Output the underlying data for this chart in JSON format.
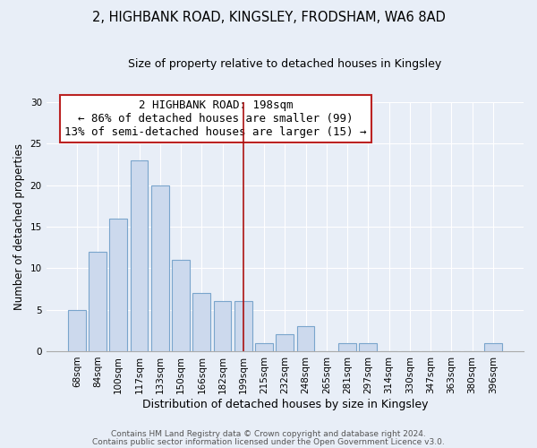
{
  "title_line1": "2, HIGHBANK ROAD, KINGSLEY, FRODSHAM, WA6 8AD",
  "title_line2": "Size of property relative to detached houses in Kingsley",
  "xlabel": "Distribution of detached houses by size in Kingsley",
  "ylabel": "Number of detached properties",
  "bar_labels": [
    "68sqm",
    "84sqm",
    "100sqm",
    "117sqm",
    "133sqm",
    "150sqm",
    "166sqm",
    "182sqm",
    "199sqm",
    "215sqm",
    "232sqm",
    "248sqm",
    "265sqm",
    "281sqm",
    "297sqm",
    "314sqm",
    "330sqm",
    "347sqm",
    "363sqm",
    "380sqm",
    "396sqm"
  ],
  "bar_values": [
    5,
    12,
    16,
    23,
    20,
    11,
    7,
    6,
    6,
    1,
    2,
    3,
    0,
    1,
    1,
    0,
    0,
    0,
    0,
    0,
    1
  ],
  "bar_color": "#ccd9ed",
  "bar_edge_color": "#7aa5cc",
  "vline_index": 8,
  "vline_color": "#aa1111",
  "annotation_title": "2 HIGHBANK ROAD: 198sqm",
  "annotation_line1": "← 86% of detached houses are smaller (99)",
  "annotation_line2": "13% of semi-detached houses are larger (15) →",
  "annotation_box_edge": "#bb2222",
  "ylim": [
    0,
    30
  ],
  "yticks": [
    0,
    5,
    10,
    15,
    20,
    25,
    30
  ],
  "footer_line1": "Contains HM Land Registry data © Crown copyright and database right 2024.",
  "footer_line2": "Contains public sector information licensed under the Open Government Licence v3.0.",
  "bg_color": "#e8eef7",
  "plot_bg_color": "#e8eef7",
  "grid_color": "#ffffff",
  "title1_fontsize": 10.5,
  "title2_fontsize": 9,
  "ylabel_fontsize": 8.5,
  "xlabel_fontsize": 9,
  "tick_fontsize": 7.5,
  "annot_fontsize": 9,
  "footer_fontsize": 6.5
}
